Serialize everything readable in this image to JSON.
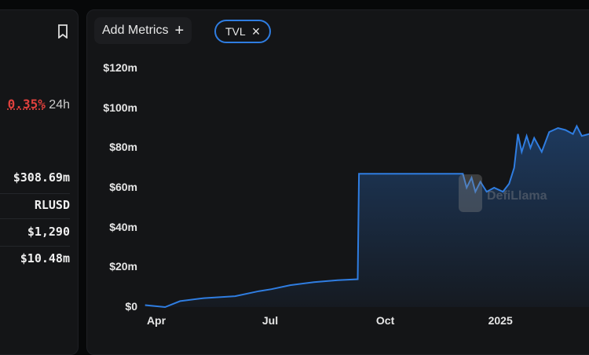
{
  "left_panel": {
    "change": "0.35%",
    "period": "24h",
    "rows": [
      "$308.69m",
      "RLUSD",
      "$1,290",
      "$10.48m"
    ],
    "change_color": "#e0413d"
  },
  "toolbar": {
    "add_metrics": "Add Metrics",
    "add_icon": "+",
    "tvl_chip": "TVL",
    "chip_close": "×"
  },
  "watermark": "DefiLlama",
  "chart_data": {
    "type": "area",
    "title": "",
    "xlabel": "",
    "ylabel": "TVL",
    "ylim": [
      0,
      120
    ],
    "yticks": [
      "$0",
      "$20m",
      "$40m",
      "$60m",
      "$80m",
      "$100m",
      "$120m"
    ],
    "xticks": [
      {
        "label": "Apr",
        "date": "2024-04-01"
      },
      {
        "label": "Jul",
        "date": "2024-07-01"
      },
      {
        "label": "Oct",
        "date": "2024-10-01"
      },
      {
        "label": "2025",
        "date": "2025-01-01"
      }
    ],
    "series": [
      {
        "name": "TVL",
        "unit": "$m",
        "color": "#2f7de1",
        "points": [
          [
            "2024-03-23",
            1
          ],
          [
            "2024-04-08",
            0
          ],
          [
            "2024-04-20",
            3
          ],
          [
            "2024-05-09",
            4.5
          ],
          [
            "2024-06-03",
            5.5
          ],
          [
            "2024-06-22",
            8
          ],
          [
            "2024-07-02",
            9
          ],
          [
            "2024-07-17",
            11
          ],
          [
            "2024-08-05",
            12.5
          ],
          [
            "2024-08-24",
            13.5
          ],
          [
            "2024-09-09",
            14
          ],
          [
            "2024-09-10",
            67
          ],
          [
            "2024-12-02",
            67
          ],
          [
            "2024-12-05",
            60
          ],
          [
            "2024-12-09",
            65
          ],
          [
            "2024-12-12",
            58
          ],
          [
            "2024-12-16",
            63
          ],
          [
            "2024-12-21",
            58
          ],
          [
            "2024-12-27",
            60
          ],
          [
            "2025-01-03",
            58
          ],
          [
            "2025-01-08",
            62
          ],
          [
            "2025-01-12",
            70
          ],
          [
            "2025-01-15",
            87
          ],
          [
            "2025-01-18",
            78
          ],
          [
            "2025-01-22",
            86
          ],
          [
            "2025-01-25",
            80
          ],
          [
            "2025-01-28",
            85
          ],
          [
            "2025-02-03",
            78
          ],
          [
            "2025-02-09",
            88
          ],
          [
            "2025-02-16",
            90
          ],
          [
            "2025-02-22",
            89
          ],
          [
            "2025-02-28",
            87
          ],
          [
            "2025-03-03",
            91
          ],
          [
            "2025-03-07",
            86
          ],
          [
            "2025-03-13",
            87
          ]
        ]
      }
    ]
  }
}
